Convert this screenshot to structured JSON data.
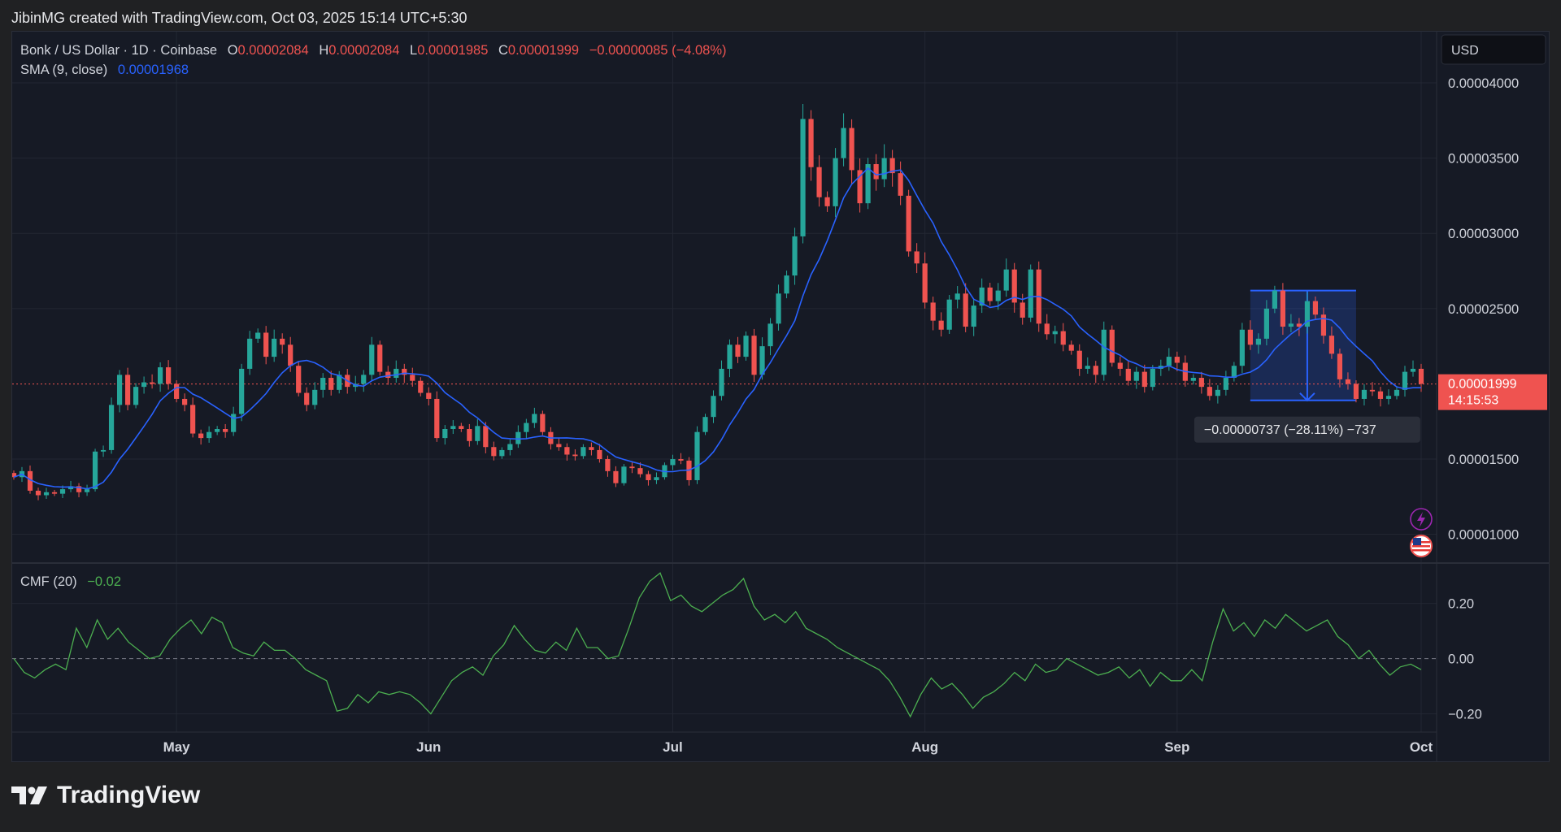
{
  "attribution": "JibinMG created with TradingView.com, Oct 03, 2025 15:14 UTC+5:30",
  "logo_text": "TradingView",
  "legend": {
    "symbol": "Bonk / US Dollar · 1D · Coinbase",
    "o_label": "O",
    "o_value": "0.00002084",
    "h_label": "H",
    "h_value": "0.00002084",
    "l_label": "L",
    "l_value": "0.00001985",
    "c_label": "C",
    "c_value": "0.00001999",
    "change": "−0.00000085 (−4.08%)",
    "sma_label": "SMA (9, close)",
    "sma_value": "0.00001968",
    "cmf_label": "CMF (20)",
    "cmf_value": "−0.02"
  },
  "currency_button": "USD",
  "price_tag": {
    "price": "0.00001999",
    "countdown": "14:15:53"
  },
  "measure_label": "−0.00000737 (−28.11%) −737",
  "colors": {
    "up": "#26a69a",
    "down": "#ef5350",
    "sma": "#2962ff",
    "cmf": "#4caf50",
    "bg": "#161a25"
  },
  "chart_data": {
    "type": "candlestick",
    "y_axis_ticks": [
      "0.00004000",
      "0.00003500",
      "0.00003000",
      "0.00002500",
      "0.00001500",
      "0.00001000"
    ],
    "x_axis_ticks": [
      "May",
      "Jun",
      "Jul",
      "Aug",
      "Sep",
      "Oct"
    ],
    "ylim": [
      8.2e-06,
      4.34e-05
    ],
    "cmf_ticks": [
      "0.20",
      "0.00",
      "−0.20"
    ],
    "cmf_ylim": [
      -0.26,
      0.34
    ],
    "series": [
      {
        "name": "Bonk / US Dollar",
        "kind": "candles",
        "close": [
          1.38e-05,
          1.42e-05,
          1.29e-05,
          1.26e-05,
          1.28e-05,
          1.27e-05,
          1.3e-05,
          1.32e-05,
          1.28e-05,
          1.3e-05,
          1.55e-05,
          1.56e-05,
          1.86e-05,
          2.06e-05,
          1.86e-05,
          1.98e-05,
          2.01e-05,
          2e-05,
          2.11e-05,
          2e-05,
          1.9e-05,
          1.86e-05,
          1.67e-05,
          1.64e-05,
          1.68e-05,
          1.7e-05,
          1.68e-05,
          1.8e-05,
          2.1e-05,
          2.3e-05,
          2.34e-05,
          2.18e-05,
          2.3e-05,
          2.26e-05,
          2.12e-05,
          1.94e-05,
          1.86e-05,
          1.96e-05,
          2.04e-05,
          1.96e-05,
          2.06e-05,
          1.98e-05,
          2e-05,
          2.06e-05,
          2.26e-05,
          2.08e-05,
          2.04e-05,
          2.1e-05,
          2.06e-05,
          2.02e-05,
          1.94e-05,
          1.9e-05,
          1.64e-05,
          1.7e-05,
          1.72e-05,
          1.7e-05,
          1.62e-05,
          1.72e-05,
          1.58e-05,
          1.52e-05,
          1.56e-05,
          1.6e-05,
          1.68e-05,
          1.74e-05,
          1.8e-05,
          1.68e-05,
          1.6e-05,
          1.58e-05,
          1.53e-05,
          1.52e-05,
          1.58e-05,
          1.56e-05,
          1.5e-05,
          1.42e-05,
          1.34e-05,
          1.45e-05,
          1.44e-05,
          1.4e-05,
          1.36e-05,
          1.38e-05,
          1.46e-05,
          1.5e-05,
          1.49e-05,
          1.36e-05,
          1.68e-05,
          1.78e-05,
          1.92e-05,
          2.1e-05,
          2.26e-05,
          2.18e-05,
          2.32e-05,
          2.06e-05,
          2.25e-05,
          2.4e-05,
          2.6e-05,
          2.72e-05,
          2.98e-05,
          3.76e-05,
          3.44e-05,
          3.24e-05,
          3.18e-05,
          3.5e-05,
          3.7e-05,
          3.42e-05,
          3.2e-05,
          3.46e-05,
          3.36e-05,
          3.5e-05,
          3.4e-05,
          3.25e-05,
          2.88e-05,
          2.8e-05,
          2.54e-05,
          2.42e-05,
          2.36e-05,
          2.56e-05,
          2.6e-05,
          2.38e-05,
          2.52e-05,
          2.64e-05,
          2.55e-05,
          2.62e-05,
          2.76e-05,
          2.54e-05,
          2.44e-05,
          2.76e-05,
          2.4e-05,
          2.33e-05,
          2.35e-05,
          2.26e-05,
          2.22e-05,
          2.1e-05,
          2.12e-05,
          2.06e-05,
          2.36e-05,
          2.14e-05,
          2.1e-05,
          2.02e-05,
          2.08e-05,
          1.98e-05,
          2.1e-05,
          2.12e-05,
          2.18e-05,
          2.14e-05,
          2.02e-05,
          2.04e-05,
          1.98e-05,
          1.92e-05,
          1.96e-05,
          2.04e-05,
          2.12e-05,
          2.36e-05,
          2.26e-05,
          2.3e-05,
          2.5e-05,
          2.62e-05,
          2.38e-05,
          2.4e-05,
          2.38e-05,
          2.55e-05,
          2.46e-05,
          2.32e-05,
          2.2e-05,
          2.03e-05,
          2e-05,
          1.9e-05,
          1.96e-05,
          1.95e-05,
          1.9e-05,
          1.92e-05,
          1.96e-05,
          2.08e-05,
          2.1e-05,
          2e-05
        ]
      },
      {
        "name": "SMA (9, close)",
        "kind": "line"
      },
      {
        "name": "CMF (20)",
        "kind": "line",
        "values": [
          0.0,
          -0.05,
          -0.07,
          -0.04,
          -0.02,
          -0.04,
          0.11,
          0.04,
          0.14,
          0.07,
          0.11,
          0.06,
          0.03,
          0.0,
          0.01,
          0.07,
          0.11,
          0.14,
          0.09,
          0.15,
          0.13,
          0.04,
          0.02,
          0.01,
          0.06,
          0.03,
          0.03,
          0.0,
          -0.04,
          -0.06,
          -0.08,
          -0.19,
          -0.18,
          -0.13,
          -0.16,
          -0.12,
          -0.13,
          -0.12,
          -0.13,
          -0.16,
          -0.2,
          -0.14,
          -0.08,
          -0.05,
          -0.03,
          -0.06,
          0.01,
          0.05,
          0.12,
          0.07,
          0.03,
          0.02,
          0.06,
          0.03,
          0.11,
          0.04,
          0.04,
          0.0,
          0.01,
          0.11,
          0.22,
          0.28,
          0.31,
          0.21,
          0.23,
          0.19,
          0.17,
          0.2,
          0.23,
          0.25,
          0.29,
          0.19,
          0.14,
          0.16,
          0.13,
          0.17,
          0.11,
          0.09,
          0.07,
          0.04,
          0.02,
          0.0,
          -0.02,
          -0.04,
          -0.08,
          -0.14,
          -0.21,
          -0.13,
          -0.07,
          -0.11,
          -0.09,
          -0.13,
          -0.18,
          -0.14,
          -0.12,
          -0.09,
          -0.05,
          -0.08,
          -0.02,
          -0.05,
          -0.04,
          0.0,
          -0.02,
          -0.04,
          -0.06,
          -0.05,
          -0.03,
          -0.07,
          -0.04,
          -0.1,
          -0.05,
          -0.08,
          -0.08,
          -0.04,
          -0.08,
          0.06,
          0.18,
          0.1,
          0.13,
          0.08,
          0.14,
          0.11,
          0.16,
          0.13,
          0.1,
          0.12,
          0.14,
          0.08,
          0.05,
          0.0,
          0.03,
          -0.02,
          -0.06,
          -0.03,
          -0.02,
          -0.04
        ]
      }
    ],
    "measure": {
      "from": 2.62e-05,
      "to": 1.89e-05,
      "change": -7.37e-06,
      "change_pct": -28.11,
      "ticks": -737
    }
  }
}
